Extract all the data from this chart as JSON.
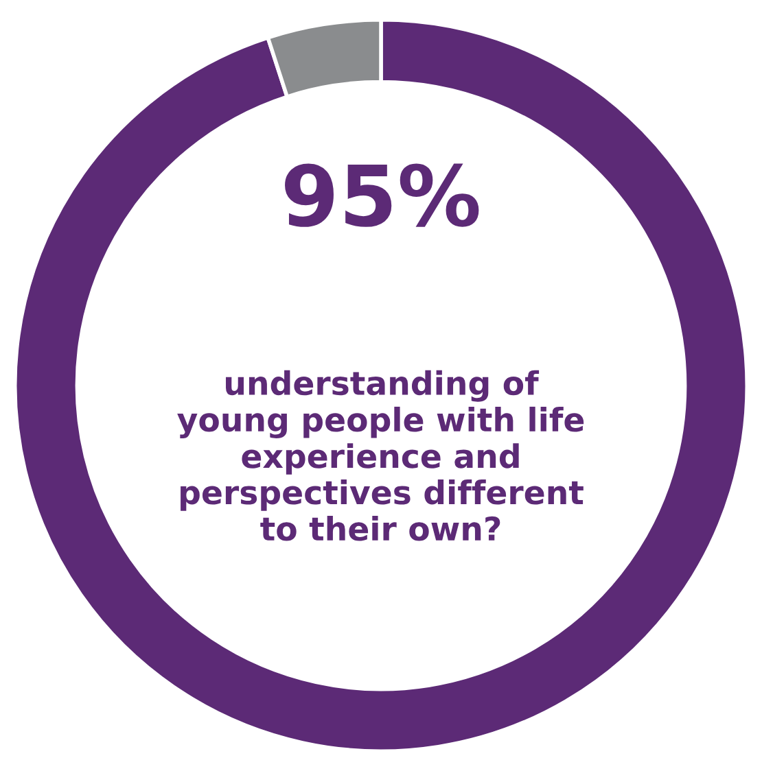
{
  "chart_data": {
    "type": "donut",
    "categories": [
      null,
      null
    ],
    "values": [
      95,
      5
    ],
    "colors": [
      "#5c2a76",
      "#8a8c8e"
    ],
    "value_labels": [
      "95%",
      null
    ],
    "annotations": [
      "understanding of\nyoung people with life\nexperience and\nperspectives different\nto their own?"
    ],
    "legend": false
  }
}
